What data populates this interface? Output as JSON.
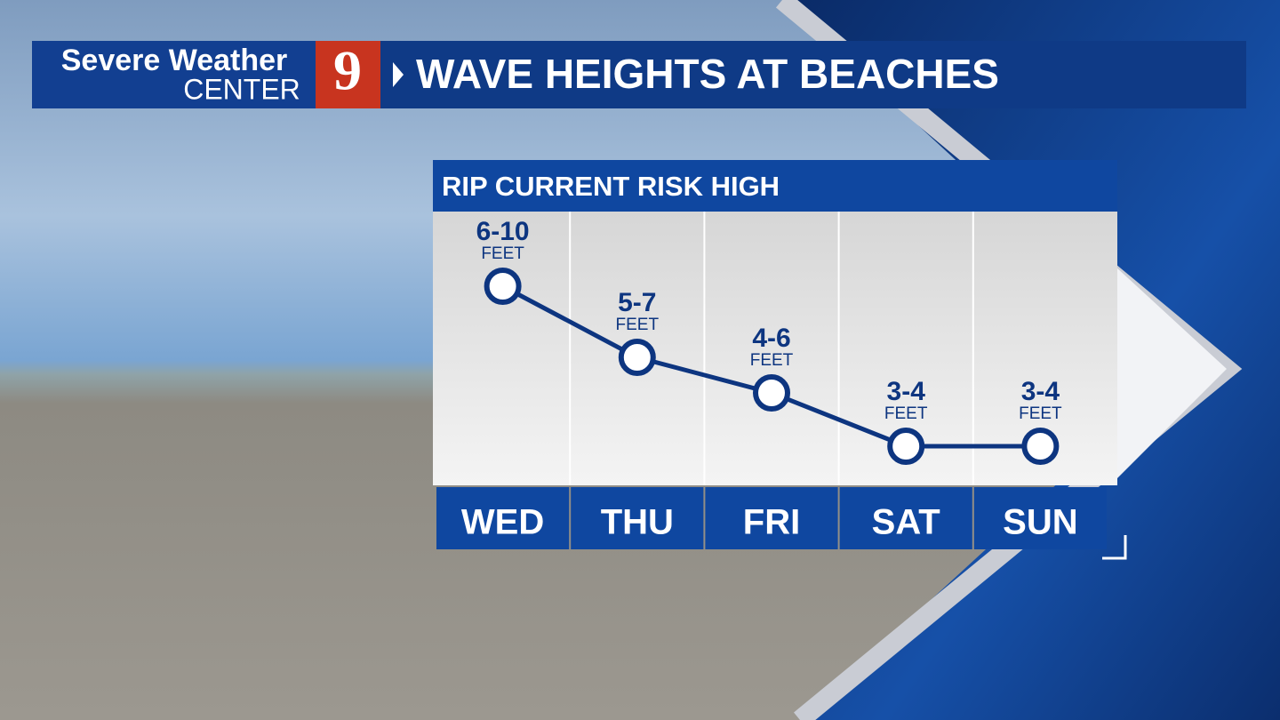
{
  "branding": {
    "line1": "Severe Weather",
    "line2": "CENTER",
    "channel": "9"
  },
  "chart_data": {
    "type": "line",
    "title": "WAVE HEIGHTS AT BEACHES",
    "subtitle": "RIP CURRENT RISK HIGH",
    "categories": [
      "WED",
      "THU",
      "FRI",
      "SAT",
      "SUN"
    ],
    "low": [
      6,
      5,
      4,
      3,
      3
    ],
    "high": [
      10,
      7,
      6,
      4,
      4
    ],
    "value_labels": [
      "6-10",
      "5-7",
      "4-6",
      "3-4",
      "3-4"
    ],
    "unit": "FEET",
    "color": "#0d3580"
  }
}
